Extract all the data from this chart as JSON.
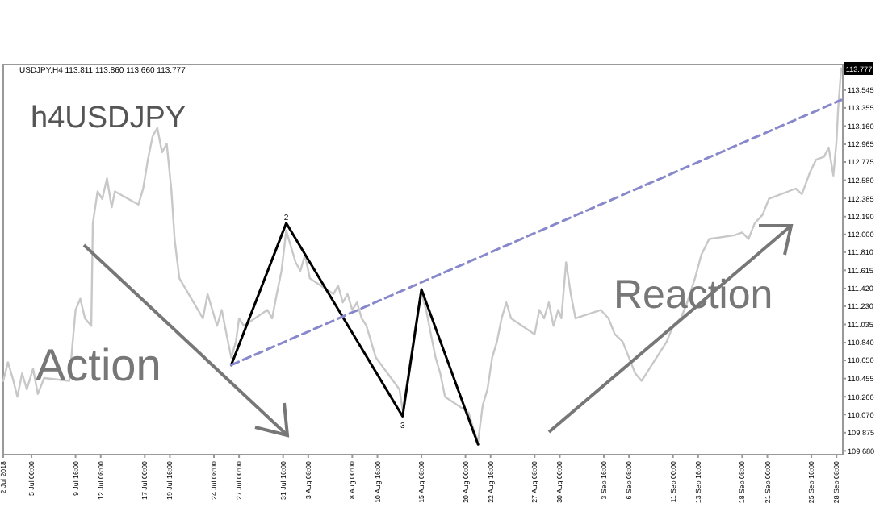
{
  "chart_data": {
    "type": "line",
    "title": "h4USDJPY",
    "subtitle": "USDJPY,H4  113.811 113.860 113.660 113.777",
    "annotations": [
      {
        "text": "Action"
      },
      {
        "text": "Reaction"
      },
      {
        "text": "2",
        "x": "2018-08-01T00:00",
        "y": 112.12
      },
      {
        "text": "3",
        "x": "2018-08-13T08:00",
        "y": 110.05
      },
      {
        "text": "113.777",
        "x": "2018-09-28T20:00",
        "y": 113.777
      }
    ],
    "xlim": [
      "2018-07-02T00:00",
      "2018-09-29T00:00"
    ],
    "ylim": [
      109.64,
      113.82
    ],
    "xticks": [
      {
        "value": "2018-07-02T00:00",
        "label": "2 Jul 2018"
      },
      {
        "value": "2018-07-05T00:00",
        "label": "5 Jul 00:00"
      },
      {
        "value": "2018-07-09T16:00",
        "label": "9 Jul 16:00"
      },
      {
        "value": "2018-07-12T08:00",
        "label": "12 Jul 08:00"
      },
      {
        "value": "2018-07-17T00:00",
        "label": "17 Jul 00:00"
      },
      {
        "value": "2018-07-19T16:00",
        "label": "19 Jul 16:00"
      },
      {
        "value": "2018-07-24T08:00",
        "label": "24 Jul 08:00"
      },
      {
        "value": "2018-07-27T00:00",
        "label": "27 Jul 00:00"
      },
      {
        "value": "2018-07-31T16:00",
        "label": "31 Jul 16:00"
      },
      {
        "value": "2018-08-03T08:00",
        "label": "3 Aug 08:00"
      },
      {
        "value": "2018-08-08T00:00",
        "label": "8 Aug 00:00"
      },
      {
        "value": "2018-08-10T16:00",
        "label": "10 Aug 16:00"
      },
      {
        "value": "2018-08-15T08:00",
        "label": "15 Aug 08:00"
      },
      {
        "value": "2018-08-20T00:00",
        "label": "20 Aug 00:00"
      },
      {
        "value": "2018-08-22T16:00",
        "label": "22 Aug 16:00"
      },
      {
        "value": "2018-08-27T08:00",
        "label": "27 Aug 08:00"
      },
      {
        "value": "2018-08-30T00:00",
        "label": "30 Aug 00:00"
      },
      {
        "value": "2018-09-03T16:00",
        "label": "3 Sep 16:00"
      },
      {
        "value": "2018-09-06T08:00",
        "label": "6 Sep 08:00"
      },
      {
        "value": "2018-09-11T00:00",
        "label": "11 Sep 00:00"
      },
      {
        "value": "2018-09-13T16:00",
        "label": "13 Sep 16:00"
      },
      {
        "value": "2018-09-18T08:00",
        "label": "18 Sep 08:00"
      },
      {
        "value": "2018-09-21T00:00",
        "label": "21 Sep 00:00"
      },
      {
        "value": "2018-09-25T16:00",
        "label": "25 Sep 16:00"
      },
      {
        "value": "2018-09-28T08:00",
        "label": "28 Sep 08:00"
      }
    ],
    "yticks": [
      {
        "value": 113.545,
        "label": "113.545"
      },
      {
        "value": 113.355,
        "label": "113.355"
      },
      {
        "value": 113.16,
        "label": "113.160"
      },
      {
        "value": 112.965,
        "label": "112.965"
      },
      {
        "value": 112.775,
        "label": "112.775"
      },
      {
        "value": 112.58,
        "label": "112.580"
      },
      {
        "value": 112.385,
        "label": "112.385"
      },
      {
        "value": 112.19,
        "label": "112.190"
      },
      {
        "value": 112.0,
        "label": "112.000"
      },
      {
        "value": 111.81,
        "label": "111.810"
      },
      {
        "value": 111.615,
        "label": "111.615"
      },
      {
        "value": 111.42,
        "label": "111.420"
      },
      {
        "value": 111.23,
        "label": "111.230"
      },
      {
        "value": 111.035,
        "label": "111.035"
      },
      {
        "value": 110.84,
        "label": "110.840"
      },
      {
        "value": 110.65,
        "label": "110.650"
      },
      {
        "value": 110.455,
        "label": "110.455"
      },
      {
        "value": 110.26,
        "label": "110.260"
      },
      {
        "value": 110.07,
        "label": "110.070"
      },
      {
        "value": 109.875,
        "label": "109.875"
      },
      {
        "value": 109.68,
        "label": "109.680"
      }
    ],
    "series": [
      {
        "color": "#c8c8c8",
        "x": [
          "2018-07-02T00:00",
          "2018-07-02T12:00",
          "2018-07-03T00:00",
          "2018-07-03T12:00",
          "2018-07-04T00:00",
          "2018-07-04T12:00",
          "2018-07-05T04:00",
          "2018-07-05T16:00",
          "2018-07-06T08:00",
          "2018-07-09T00:00",
          "2018-07-09T16:00",
          "2018-07-10T04:00",
          "2018-07-10T16:00",
          "2018-07-11T08:00",
          "2018-07-11T12:00",
          "2018-07-12T00:00",
          "2018-07-12T12:00",
          "2018-07-13T00:00",
          "2018-07-13T12:00",
          "2018-07-13T20:00",
          "2018-07-16T08:00",
          "2018-07-16T20:00",
          "2018-07-17T08:00",
          "2018-07-17T20:00",
          "2018-07-18T08:00",
          "2018-07-18T20:00",
          "2018-07-19T08:00",
          "2018-07-19T20:00",
          "2018-07-20T04:00",
          "2018-07-20T16:00",
          "2018-07-23T04:00",
          "2018-07-23T16:00",
          "2018-07-24T04:00",
          "2018-07-24T16:00",
          "2018-07-25T04:00",
          "2018-07-25T16:00",
          "2018-07-26T04:00",
          "2018-07-26T16:00",
          "2018-07-27T00:00",
          "2018-07-27T12:00",
          "2018-07-30T00:00",
          "2018-07-30T12:00",
          "2018-07-31T00:00",
          "2018-07-31T12:00",
          "2018-08-01T00:00",
          "2018-08-01T12:00",
          "2018-08-02T00:00",
          "2018-08-02T12:00",
          "2018-08-03T00:00",
          "2018-08-03T12:00",
          "2018-08-06T00:00",
          "2018-08-06T12:00",
          "2018-08-07T00:00",
          "2018-08-07T12:00",
          "2018-08-08T00:00",
          "2018-08-08T12:00",
          "2018-08-09T00:00",
          "2018-08-09T12:00",
          "2018-08-10T00:00",
          "2018-08-10T12:00",
          "2018-08-13T00:00",
          "2018-08-13T08:00",
          "2018-08-13T20:00",
          "2018-08-14T08:00",
          "2018-08-14T20:00",
          "2018-08-15T08:00",
          "2018-08-15T20:00",
          "2018-08-16T08:00",
          "2018-08-16T20:00",
          "2018-08-17T08:00",
          "2018-08-17T20:00",
          "2018-08-20T08:00",
          "2018-08-20T20:00",
          "2018-08-21T08:00",
          "2018-08-21T20:00",
          "2018-08-22T08:00",
          "2018-08-22T20:00",
          "2018-08-23T08:00",
          "2018-08-23T20:00",
          "2018-08-24T08:00",
          "2018-08-24T20:00",
          "2018-08-27T08:00",
          "2018-08-27T20:00",
          "2018-08-28T08:00",
          "2018-08-28T20:00",
          "2018-08-29T08:00",
          "2018-08-29T20:00",
          "2018-08-30T04:00",
          "2018-08-30T16:00",
          "2018-08-31T04:00",
          "2018-08-31T16:00",
          "2018-09-03T08:00",
          "2018-09-04T04:00",
          "2018-09-04T20:00",
          "2018-09-05T16:00",
          "2018-09-06T08:00",
          "2018-09-07T00:00",
          "2018-09-07T16:00",
          "2018-09-10T08:00",
          "2018-09-11T00:00",
          "2018-09-11T20:00",
          "2018-09-12T12:00",
          "2018-09-13T08:00",
          "2018-09-14T00:00",
          "2018-09-14T20:00",
          "2018-09-17T12:00",
          "2018-09-18T08:00",
          "2018-09-19T00:00",
          "2018-09-19T16:00",
          "2018-09-20T12:00",
          "2018-09-21T04:00",
          "2018-09-24T00:00",
          "2018-09-24T16:00",
          "2018-09-25T12:00",
          "2018-09-26T04:00",
          "2018-09-27T00:00",
          "2018-09-27T12:00",
          "2018-09-28T00:00",
          "2018-09-28T08:00",
          "2018-09-28T12:00",
          "2018-09-28T16:00",
          "2018-09-28T20:00"
        ],
        "values": [
          110.43,
          110.63,
          110.46,
          110.26,
          110.51,
          110.34,
          110.56,
          110.29,
          110.46,
          110.43,
          111.19,
          111.31,
          111.1,
          111.02,
          112.12,
          112.46,
          112.38,
          112.6,
          112.29,
          112.46,
          112.32,
          112.49,
          112.8,
          113.05,
          113.14,
          112.88,
          112.97,
          112.46,
          111.95,
          111.53,
          111.1,
          111.36,
          111.19,
          111.02,
          111.19,
          110.93,
          110.68,
          110.85,
          111.1,
          111.02,
          111.19,
          111.1,
          111.36,
          111.61,
          112.04,
          111.87,
          111.7,
          111.61,
          111.78,
          111.53,
          111.36,
          111.45,
          111.27,
          111.36,
          111.19,
          111.27,
          111.1,
          111.02,
          110.85,
          110.68,
          110.34,
          110.12,
          110.43,
          110.77,
          111.1,
          111.36,
          111.19,
          110.93,
          110.68,
          110.51,
          110.26,
          110.09,
          109.92,
          109.78,
          110.17,
          110.34,
          110.68,
          110.85,
          111.1,
          111.27,
          111.1,
          110.93,
          111.19,
          111.1,
          111.27,
          111.02,
          111.19,
          111.1,
          111.7,
          111.36,
          111.1,
          111.19,
          111.1,
          110.93,
          110.85,
          110.68,
          110.51,
          110.43,
          110.85,
          111.02,
          111.1,
          111.27,
          111.53,
          111.78,
          111.95,
          111.99,
          112.02,
          111.95,
          112.12,
          112.21,
          112.38,
          112.49,
          112.43,
          112.66,
          112.8,
          112.83,
          112.93,
          112.63,
          113.0,
          113.34,
          113.56,
          113.78
        ]
      },
      {
        "color": "#000000",
        "x": [
          "2018-07-26T04:00",
          "2018-08-01T00:00",
          "2018-08-13T08:00",
          "2018-08-15T08:00",
          "2018-08-21T08:00"
        ],
        "values": [
          110.6,
          112.12,
          110.05,
          111.41,
          109.75
        ]
      },
      {
        "color": "#8888cc",
        "line_style": "dashed",
        "x": [
          "2018-07-26T04:00",
          "2018-09-28T20:00"
        ],
        "values": [
          110.6,
          113.44
        ]
      }
    ]
  }
}
